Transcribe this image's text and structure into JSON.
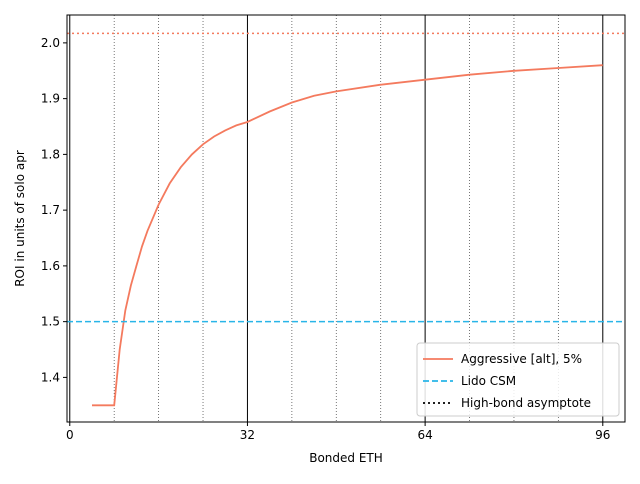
{
  "chart_data": {
    "type": "line",
    "xlabel": "Bonded ETH",
    "ylabel": "ROI in units of solo apr",
    "xlim": [
      -0.5,
      100
    ],
    "ylim": [
      1.32,
      2.05
    ],
    "xticks": [
      0,
      32,
      64,
      96
    ],
    "yticks": [
      1.4,
      1.5,
      1.6,
      1.7,
      1.8,
      1.9,
      2.0
    ],
    "ytick_labels": [
      "1.4",
      "1.5",
      "1.6",
      "1.7",
      "1.8",
      "1.9",
      "2.0"
    ],
    "major_vlines": [
      0,
      32,
      64,
      96
    ],
    "minor_vlines": [
      8,
      16,
      24,
      40,
      48,
      56,
      72,
      80,
      88
    ],
    "grid": "vertical lines only (solid at 32 ETH multiples, dotted every 8 ETH)",
    "legend_position": "lower-right",
    "series": [
      {
        "name": "Aggressive [alt], 5%",
        "color": "#f47a5e",
        "style": "solid",
        "x": [
          4,
          6,
          8,
          9,
          10,
          11,
          12,
          13,
          14,
          16,
          18,
          20,
          22,
          24,
          26,
          28,
          30,
          32,
          36,
          40,
          44,
          48,
          56,
          64,
          72,
          80,
          88,
          96
        ],
        "y": [
          1.35,
          1.35,
          1.35,
          1.45,
          1.52,
          1.565,
          1.6,
          1.635,
          1.663,
          1.71,
          1.748,
          1.777,
          1.8,
          1.818,
          1.832,
          1.843,
          1.852,
          1.858,
          1.877,
          1.893,
          1.905,
          1.913,
          1.925,
          1.934,
          1.943,
          1.95,
          1.955,
          1.96
        ]
      },
      {
        "name": "Lido CSM",
        "color": "#29b5e8",
        "style": "dashed",
        "y_const": 1.5
      },
      {
        "name": "High-bond asymptote",
        "color": "#000000",
        "plot_color": "#f47a5e",
        "style": "dotted",
        "y_const": 2.017
      }
    ]
  }
}
